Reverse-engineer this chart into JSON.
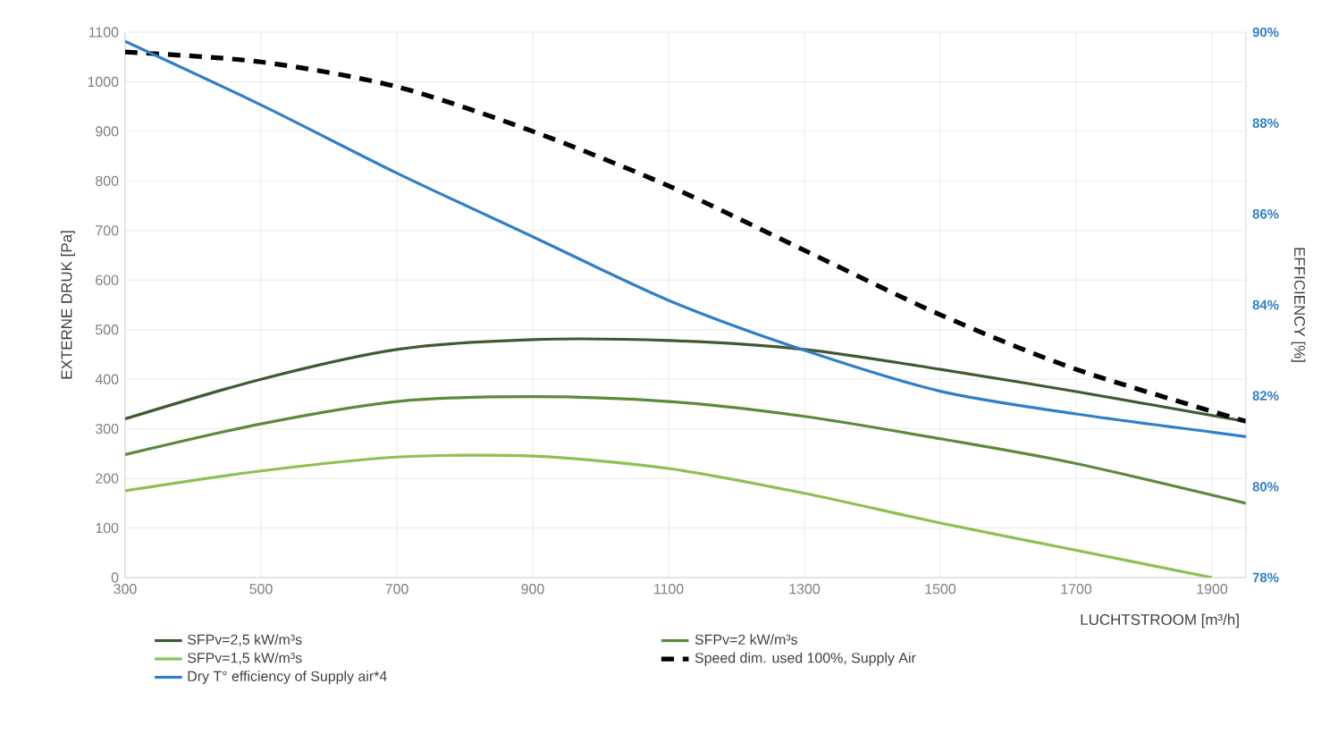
{
  "chart_data": {
    "type": "line",
    "xlabel": "LUCHTSTROOM [m³/h]",
    "ylabel": "EXTERNE DRUK [Pa]",
    "y2label": "EFFICIENCY [%]",
    "xlim": [
      300,
      1950
    ],
    "xticks": [
      300,
      500,
      700,
      900,
      1100,
      1300,
      1500,
      1700,
      1900
    ],
    "ylim": [
      0,
      1100
    ],
    "yticks": [
      0,
      100,
      200,
      300,
      400,
      500,
      600,
      700,
      800,
      900,
      1000,
      1100
    ],
    "y2lim": [
      78,
      90
    ],
    "y2ticks": [
      {
        "value": 78,
        "label": "78%"
      },
      {
        "value": 80,
        "label": "80%"
      },
      {
        "value": 82,
        "label": "82%"
      },
      {
        "value": 84,
        "label": "84%"
      },
      {
        "value": 86,
        "label": "86%"
      },
      {
        "value": 88,
        "label": "88%"
      },
      {
        "value": 90,
        "label": "90%"
      }
    ],
    "grid": true,
    "legend": "bottom",
    "series": [
      {
        "name": "SFPv=2,5 kW/m³s",
        "color": "#3f5a2f",
        "x": [
          300,
          500,
          700,
          900,
          1100,
          1300,
          1500,
          1700,
          1950
        ],
        "values": [
          320,
          400,
          460,
          480,
          478,
          460,
          420,
          375,
          315
        ]
      },
      {
        "name": "SFPv=2 kW/m³s",
        "color": "#5b8a3c",
        "x": [
          300,
          500,
          700,
          900,
          1100,
          1300,
          1500,
          1700,
          1950
        ],
        "values": [
          248,
          310,
          355,
          365,
          355,
          325,
          280,
          230,
          150
        ]
      },
      {
        "name": "SFPv=1,5 kW/m³s",
        "color": "#8cc152",
        "x": [
          300,
          500,
          700,
          900,
          1100,
          1300,
          1500,
          1700,
          1900
        ],
        "values": [
          175,
          215,
          243,
          245,
          220,
          170,
          110,
          55,
          0
        ]
      },
      {
        "name": "Speed dim. used 100%, Supply Air",
        "color": "#000000",
        "line_style": "dashed",
        "x": [
          300,
          500,
          700,
          900,
          1100,
          1300,
          1500,
          1700,
          1950
        ],
        "values": [
          1060,
          1040,
          990,
          900,
          790,
          660,
          530,
          420,
          315
        ]
      },
      {
        "name": "Dry T° efficiency of Supply air*4",
        "color": "#2f7fc8",
        "axis": "y2",
        "x": [
          300,
          500,
          700,
          900,
          1100,
          1300,
          1500,
          1700,
          1900,
          1950
        ],
        "values": [
          89.8,
          88.4,
          86.9,
          85.5,
          84.1,
          83.0,
          82.1,
          81.6,
          81.2,
          81.1
        ]
      }
    ]
  }
}
